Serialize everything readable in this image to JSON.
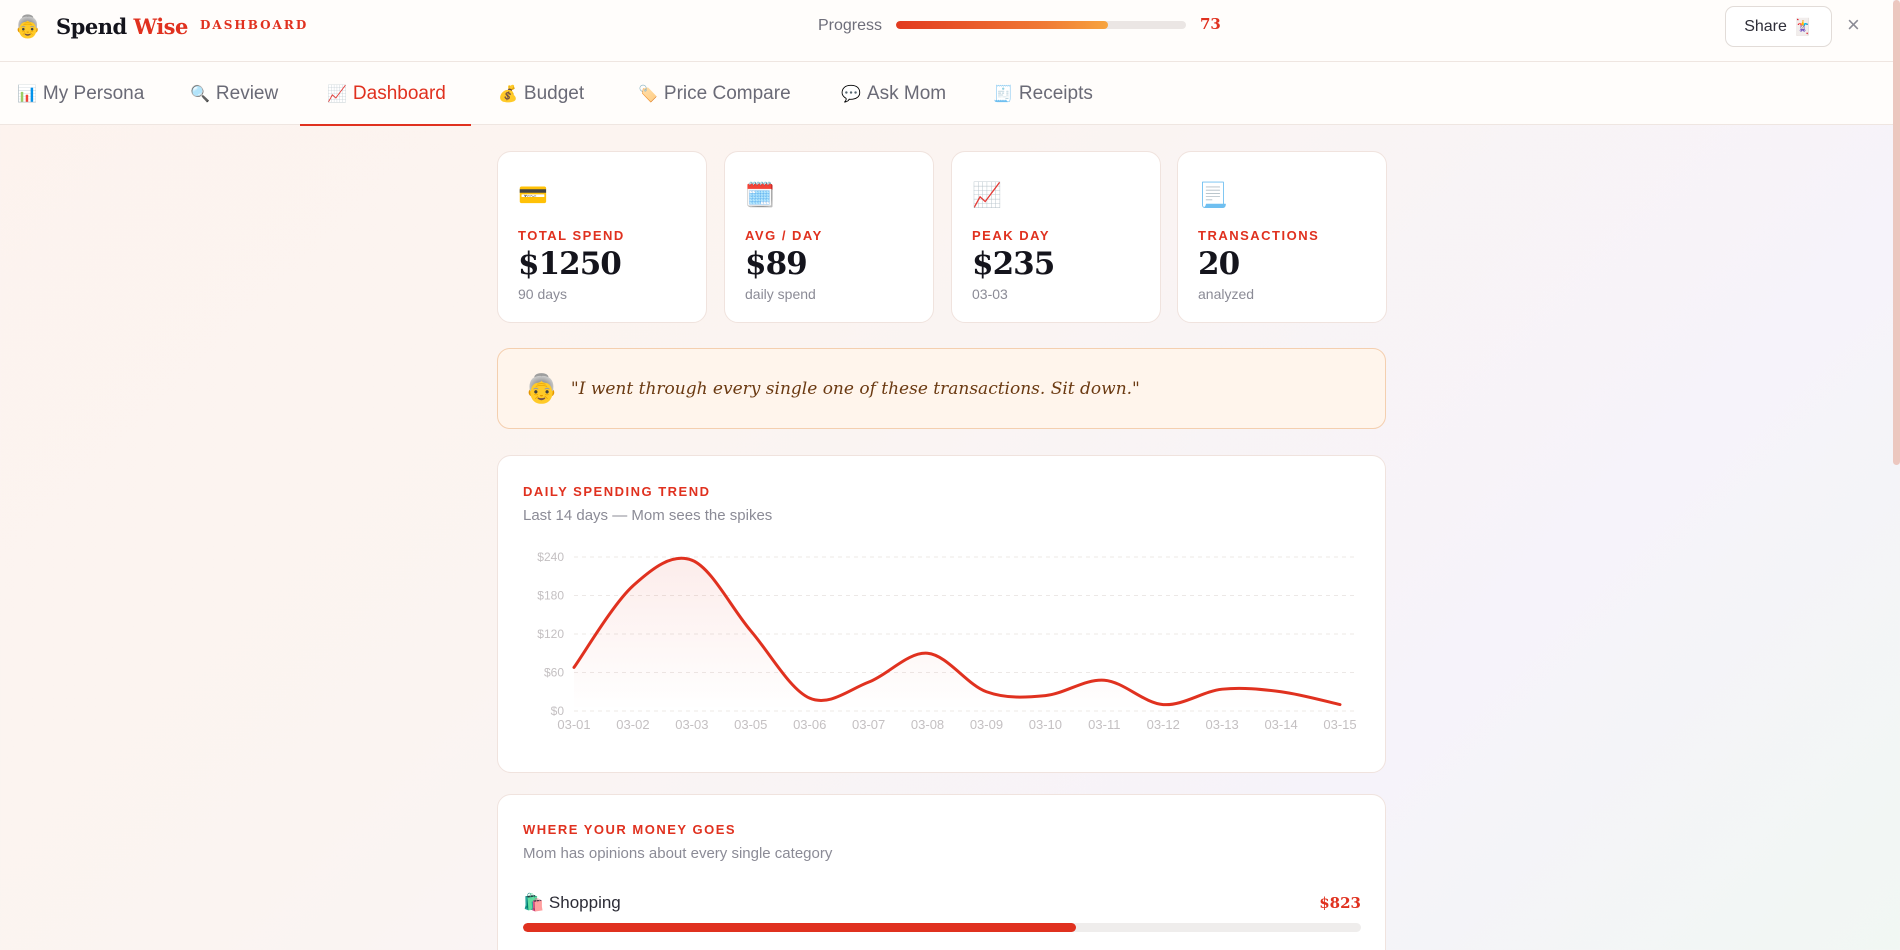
{
  "app": {
    "logo_emoji": "👵",
    "brand_primary": "Spend",
    "brand_accent": "Wise",
    "section": "DASHBOARD",
    "accent_color": "#e0311f"
  },
  "progress": {
    "label": "Progress",
    "value": 73,
    "fraction": 0.73
  },
  "share": {
    "label": "Share",
    "icon": "🃏"
  },
  "close": {
    "icon": "×"
  },
  "tabs": [
    {
      "icon": "📊",
      "label": "My Persona"
    },
    {
      "icon": "🔍",
      "label": "Review"
    },
    {
      "icon": "📈",
      "label": "Dashboard",
      "active": true
    },
    {
      "icon": "💰",
      "label": "Budget"
    },
    {
      "icon": "🏷️",
      "label": "Price Compare"
    },
    {
      "icon": "💬",
      "label": "Ask Mom"
    },
    {
      "icon": "🧾",
      "label": "Receipts"
    }
  ],
  "stats": [
    {
      "icon": "💳",
      "label": "TOTAL SPEND",
      "value": "$1250",
      "sub": "90 days"
    },
    {
      "icon": "🗓️",
      "label": "AVG / DAY",
      "value": "$89",
      "sub": "daily spend"
    },
    {
      "icon": "📈",
      "label": "PEAK DAY",
      "value": "$235",
      "sub": "03-03"
    },
    {
      "icon": "📃",
      "label": "TRANSACTIONS",
      "value": "20",
      "sub": "analyzed"
    }
  ],
  "quote": {
    "emoji": "👵",
    "text": "\"I went through every single one of these transactions. Sit down.\""
  },
  "trend": {
    "title": "DAILY SPENDING TREND",
    "subtitle": "Last 14 days — Mom sees the spikes"
  },
  "chart_data": {
    "type": "area",
    "x": [
      "03-01",
      "03-02",
      "03-03",
      "03-05",
      "03-06",
      "03-07",
      "03-08",
      "03-09",
      "03-10",
      "03-11",
      "03-12",
      "03-13",
      "03-14",
      "03-15"
    ],
    "values": [
      68,
      195,
      235,
      125,
      20,
      45,
      90,
      30,
      24,
      48,
      10,
      34,
      30,
      10
    ],
    "yticks": [
      "$0",
      "$60",
      "$120",
      "$180",
      "$240"
    ],
    "ylim": [
      0,
      240
    ],
    "line_color": "#e0311f",
    "grid": true
  },
  "categories": {
    "title": "WHERE YOUR MONEY GOES",
    "subtitle": "Mom has opinions about every single category",
    "items": [
      {
        "icon": "🛍️",
        "label": "Shopping",
        "amount": "$823",
        "fraction": 0.66
      }
    ]
  }
}
